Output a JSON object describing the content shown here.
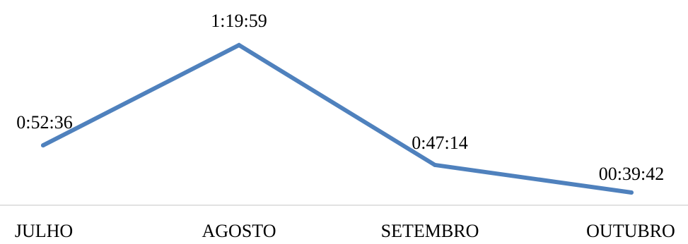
{
  "chart_data": {
    "type": "line",
    "categories": [
      "JULHO",
      "AGOSTO",
      "SETEMBRO",
      "OUTUBRO"
    ],
    "series": [
      {
        "values": [
          3156,
          4799,
          2834,
          2382
        ],
        "data_labels": [
          "0:52:36",
          "1:19:59",
          "0:47:14",
          "00:39:42"
        ]
      }
    ],
    "ylim": [
      2000,
      5000
    ],
    "grid": false,
    "legend": "none",
    "line_color": "#4f81bd",
    "axis_color": "#d9d9d9"
  }
}
